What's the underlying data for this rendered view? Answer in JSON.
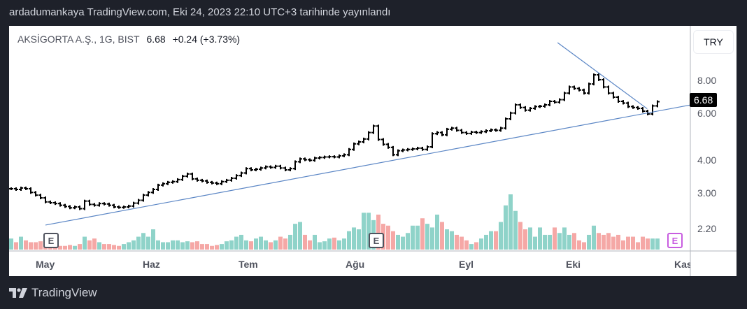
{
  "published_line": "ardadumankaya TradingView.com, Eki 24, 2023 22:10 UTC+3 tarihinde yayınlandı",
  "legend": {
    "symbol": "AKSİGORTA A.Ş., 1G, BIST",
    "last": "6.68",
    "change": "+0.24 (+3.73%)"
  },
  "currency_button": "TRY",
  "last_price_label": "6.68",
  "brand": "TradingView",
  "colors": {
    "up_volume": "#8fd3c9",
    "down_volume": "#f5a8a6",
    "bars": "#000000",
    "trendline": "#5b86c5",
    "earnings_past": "#50535e",
    "earnings_future": "#c85de0"
  },
  "earnings_icon": "E",
  "chart_data": {
    "type": "ohlc-bar",
    "scale": "log",
    "x_tick_labels": [
      "May",
      "Haz",
      "Tem",
      "Ağu",
      "Eyl",
      "Eki",
      "Kas"
    ],
    "y_tick_labels": [
      "8.00",
      "6.00",
      "4.00",
      "3.00",
      "2.20"
    ],
    "y_ticks": [
      8,
      6,
      4,
      3,
      2.2
    ],
    "closes": [
      3.12,
      3.1,
      3.14,
      3.12,
      3.02,
      2.95,
      2.88,
      2.78,
      2.76,
      2.74,
      2.7,
      2.67,
      2.64,
      2.66,
      2.62,
      2.8,
      2.72,
      2.7,
      2.74,
      2.73,
      2.7,
      2.66,
      2.65,
      2.66,
      2.68,
      2.75,
      2.82,
      2.95,
      3.02,
      3.1,
      3.22,
      3.26,
      3.3,
      3.32,
      3.38,
      3.48,
      3.55,
      3.4,
      3.36,
      3.34,
      3.3,
      3.28,
      3.26,
      3.32,
      3.36,
      3.42,
      3.5,
      3.58,
      3.72,
      3.68,
      3.7,
      3.74,
      3.78,
      3.76,
      3.8,
      3.74,
      3.68,
      3.72,
      3.95,
      4.05,
      4.02,
      4.0,
      4.08,
      4.1,
      4.12,
      4.13,
      4.12,
      4.16,
      4.2,
      4.4,
      4.62,
      4.7,
      4.82,
      5.1,
      5.4,
      4.8,
      4.6,
      4.48,
      4.2,
      4.35,
      4.38,
      4.4,
      4.42,
      4.45,
      4.4,
      4.5,
      5.05,
      5.1,
      5.0,
      5.25,
      5.3,
      5.2,
      5.1,
      5.06,
      5.12,
      5.1,
      5.14,
      5.18,
      5.22,
      5.2,
      5.3,
      5.75,
      6.05,
      6.5,
      6.35,
      6.2,
      6.3,
      6.4,
      6.42,
      6.5,
      6.7,
      6.65,
      6.8,
      7.2,
      7.6,
      7.5,
      7.4,
      7.2,
      7.8,
      8.45,
      8.1,
      7.6,
      7.2,
      6.95,
      6.7,
      6.6,
      6.4,
      6.35,
      6.3,
      6.15,
      6.0,
      6.44,
      6.68
    ],
    "volumes": [
      12,
      8,
      14,
      10,
      8,
      8,
      9,
      10,
      6,
      4,
      4,
      4,
      5,
      4,
      6,
      14,
      10,
      12,
      8,
      6,
      6,
      5,
      4,
      6,
      8,
      10,
      14,
      18,
      14,
      22,
      10,
      8,
      8,
      10,
      10,
      8,
      9,
      8,
      9,
      6,
      6,
      4,
      5,
      6,
      9,
      10,
      14,
      16,
      10,
      9,
      12,
      14,
      10,
      8,
      10,
      14,
      12,
      16,
      28,
      30,
      16,
      10,
      16,
      8,
      9,
      12,
      13,
      10,
      12,
      20,
      24,
      22,
      40,
      40,
      32,
      38,
      28,
      26,
      20,
      16,
      14,
      18,
      26,
      26,
      34,
      28,
      24,
      38,
      30,
      22,
      20,
      16,
      14,
      10,
      6,
      8,
      12,
      16,
      20,
      20,
      30,
      48,
      60,
      42,
      30,
      22,
      24,
      14,
      24,
      16,
      16,
      24,
      18,
      24,
      16,
      18,
      10,
      8,
      16,
      26,
      18,
      16,
      18,
      14,
      16,
      10,
      14,
      14,
      8,
      14,
      12,
      12,
      12
    ],
    "trendlines": [
      {
        "from_bar": 7,
        "from_price": 2.27,
        "to_bar": 138.7,
        "to_price": 6.49
      },
      {
        "from_bar": 111.6,
        "from_price": 11.2,
        "to_bar": 129.9,
        "to_price": 6.28
      }
    ],
    "earnings_bars": [
      8,
      74,
      136
    ]
  }
}
